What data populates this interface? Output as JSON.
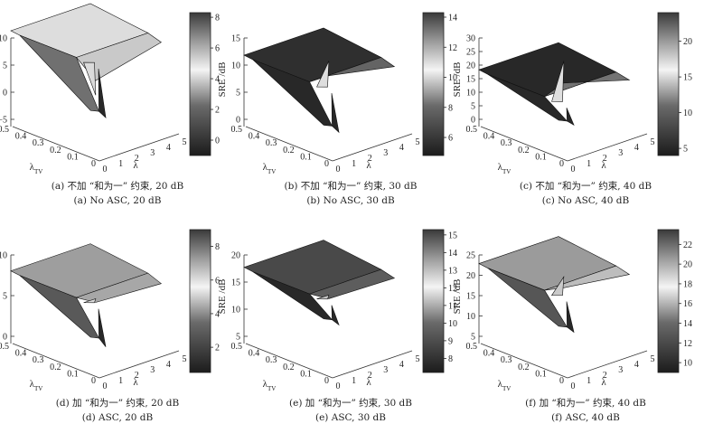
{
  "chart_data": [
    {
      "type": "surface3d",
      "id": "a",
      "z_label": "SRE /dB",
      "x_label": "λ",
      "y_label": "λ",
      "y_label_sub": "TV",
      "x_ticks": [
        "0",
        "1",
        "2",
        "3",
        "4",
        "5"
      ],
      "y_ticks": [
        "0",
        "0.1",
        "0.2",
        "0.3",
        "0.4",
        "0.5"
      ],
      "z_ticks": [
        "−5",
        "0",
        "5",
        "10"
      ],
      "zlim": [
        -5,
        10
      ],
      "colorbar_ticks": [
        "0",
        "2",
        "4",
        "6",
        "8"
      ],
      "colorbar_range": [
        -1,
        8.3
      ],
      "caption_cn": "(a) 不加 “和为一” 约束, 20 dB",
      "caption_en": "(a) No ASC, 20 dB",
      "plateau": 5,
      "dip": -3,
      "peak": 2
    },
    {
      "type": "surface3d",
      "id": "b",
      "z_label": "SRE /dB",
      "x_label": "λ",
      "y_label": "λ",
      "y_label_sub": "TV",
      "x_ticks": [
        "0",
        "1",
        "2",
        "3",
        "4",
        "5"
      ],
      "y_ticks": [
        "0",
        "0.1",
        "0.2",
        "0.3",
        "0.4",
        "0.5"
      ],
      "z_ticks": [
        "0",
        "5",
        "10",
        "15"
      ],
      "zlim": [
        0,
        15
      ],
      "colorbar_ticks": [
        "6",
        "8",
        "10",
        "12",
        "14"
      ],
      "colorbar_range": [
        4.8,
        14.3
      ],
      "caption_cn": "(b) 不加 “和为一” 约束, 30 dB",
      "caption_en": "(b) No ASC, 30 dB",
      "plateau": 5,
      "dip": -1,
      "peak": 8
    },
    {
      "type": "surface3d",
      "id": "c",
      "z_label": "SRE /dB",
      "x_label": "λ",
      "y_label": "λ",
      "y_label_sub": "TV",
      "x_ticks": [
        "0",
        "1",
        "2",
        "3",
        "4",
        "5"
      ],
      "y_ticks": [
        "0",
        "0.1",
        "0.2",
        "0.3",
        "0.4",
        "0.5"
      ],
      "z_ticks": [
        "0",
        "5",
        "10",
        "15",
        "20",
        "25",
        "30"
      ],
      "zlim": [
        0,
        30
      ],
      "colorbar_ticks": [
        "5",
        "10",
        "15",
        "20"
      ],
      "colorbar_range": [
        4,
        24
      ],
      "caption_cn": "(c) 不加 “和为一” 约束, 40 dB",
      "caption_en": "(c) No ASC, 40 dB",
      "plateau": 4,
      "dip": 0,
      "peak": 13
    },
    {
      "type": "surface3d",
      "id": "d",
      "z_label": "SRE /dB",
      "x_label": "λ",
      "y_label": "λ",
      "y_label_sub": "TV",
      "x_ticks": [
        "0",
        "1",
        "2",
        "3",
        "4",
        "5"
      ],
      "y_ticks": [
        "0",
        "0.1",
        "0.2",
        "0.3",
        "0.4",
        "0.5"
      ],
      "z_ticks": [
        "0",
        "5",
        "10"
      ],
      "zlim": [
        0,
        10
      ],
      "colorbar_ticks": [
        "2",
        "4",
        "6",
        "8"
      ],
      "colorbar_range": [
        0.5,
        9
      ],
      "caption_cn": "(d) 加 “和为一” 约束, 20 dB",
      "caption_en": "(d) ASC, 20 dB",
      "plateau": 3.5,
      "dip": 0,
      "peak": 4
    },
    {
      "type": "surface3d",
      "id": "e",
      "z_label": "SRE /dB",
      "x_label": "λ",
      "y_label": "λ",
      "y_label_sub": "TV",
      "x_ticks": [
        "0",
        "1",
        "2",
        "3",
        "4",
        "5"
      ],
      "y_ticks": [
        "0",
        "0.1",
        "0.2",
        "0.3",
        "0.4",
        "0.5"
      ],
      "z_ticks": [
        "5",
        "10",
        "15",
        "20"
      ],
      "zlim": [
        0,
        20
      ],
      "colorbar_ticks": [
        "8",
        "9",
        "10",
        "11",
        "12",
        "13",
        "14",
        "15"
      ],
      "colorbar_range": [
        7.2,
        15.3
      ],
      "caption_cn": "(e) 加 “和为一” 约束, 30 dB",
      "caption_en": "(e) ASC, 30 dB",
      "plateau": 8,
      "dip": 5,
      "peak": 9
    },
    {
      "type": "surface3d",
      "id": "f",
      "z_label": "SRE /dB",
      "x_label": "λ",
      "y_label": "λ",
      "y_label_sub": "TV",
      "x_ticks": [
        "0",
        "1",
        "2",
        "3",
        "4",
        "5"
      ],
      "y_ticks": [
        "0",
        "0.1",
        "0.2",
        "0.3",
        "0.4",
        "0.5"
      ],
      "z_ticks": [
        "5",
        "10",
        "15",
        "20",
        "25"
      ],
      "zlim": [
        5,
        25
      ],
      "colorbar_ticks": [
        "10",
        "12",
        "14",
        "16",
        "18",
        "20",
        "22"
      ],
      "colorbar_range": [
        9,
        23.5
      ],
      "caption_cn": "(f) 加 “和为一” 约束, 40 dB",
      "caption_en": "(f) ASC, 40 dB",
      "plateau": 14,
      "dip": 8,
      "peak": 17
    }
  ]
}
